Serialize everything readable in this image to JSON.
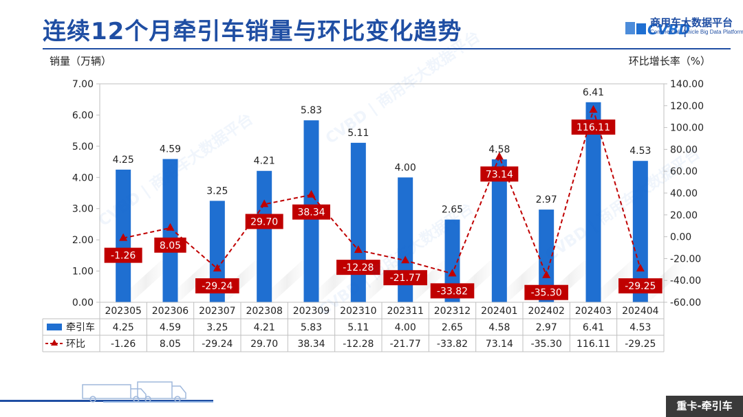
{
  "header": {
    "title": "连续12个月牵引车销量与环比变化趋势",
    "logo_name": "商用车大数据平台",
    "logo_sub": "Commercial Vehicle Big Data Platform",
    "logo_mark": "CVBD",
    "tag": "重卡-牵引车",
    "brand_color": "#1f4ea3"
  },
  "chart_data": {
    "type": "bar",
    "categories": [
      "202305",
      "202306",
      "202307",
      "202308",
      "202309",
      "202310",
      "202311",
      "202312",
      "202401",
      "202402",
      "202403",
      "202404"
    ],
    "ylabel": "销量（万辆）",
    "y2label": "环比增长率（%）",
    "ylim": [
      0,
      7
    ],
    "y2lim": [
      -60,
      140
    ],
    "yticks": [
      "0.00",
      "1.00",
      "2.00",
      "3.00",
      "4.00",
      "5.00",
      "6.00",
      "7.00"
    ],
    "y2ticks": [
      "-60.00",
      "-40.00",
      "-20.00",
      "0.00",
      "20.00",
      "40.00",
      "60.00",
      "80.00",
      "100.00",
      "120.00",
      "140.00"
    ],
    "grid": false,
    "series": [
      {
        "name": "牵引车",
        "kind": "bar",
        "color": "#1f6fd1",
        "values": [
          4.25,
          4.59,
          3.25,
          4.21,
          5.83,
          5.11,
          4.0,
          2.65,
          4.58,
          2.97,
          6.41,
          4.53
        ],
        "labels": [
          "4.25",
          "4.59",
          "3.25",
          "4.21",
          "5.83",
          "5.11",
          "4.00",
          "2.65",
          "4.58",
          "2.97",
          "6.41",
          "4.53"
        ]
      },
      {
        "name": "环比",
        "kind": "line",
        "color": "#c00000",
        "values": [
          -1.26,
          8.05,
          -29.24,
          29.7,
          38.34,
          -12.28,
          -21.77,
          -33.82,
          73.14,
          -35.3,
          116.11,
          -29.25
        ],
        "labels": [
          "-1.26",
          "8.05",
          "-29.24",
          "29.70",
          "38.34",
          "-12.28",
          "-21.77",
          "-33.82",
          "73.14",
          "-35.30",
          "116.11",
          "-29.25"
        ]
      }
    ],
    "legend_placement": "table-bottom"
  }
}
